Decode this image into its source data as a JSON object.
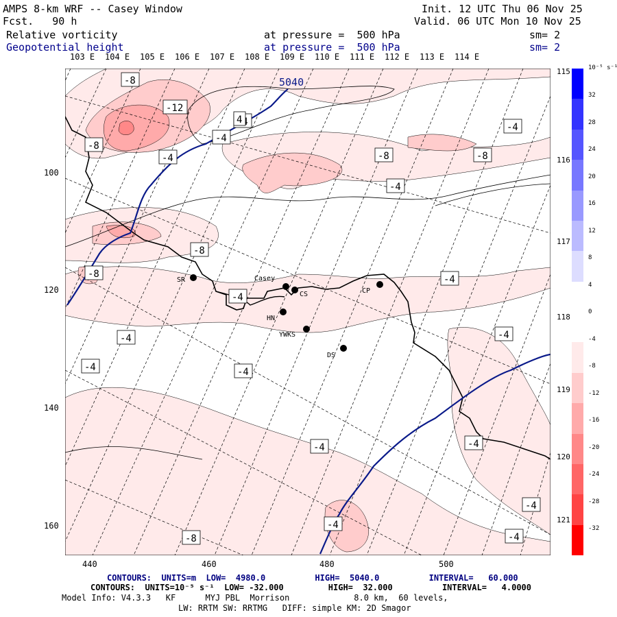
{
  "header": {
    "title": "AMPS 8-km WRF -- Casey Window",
    "fcst": "Fcst.   90 h",
    "init": "Init. 12 UTC Thu 06 Nov 25",
    "valid": "Valid. 06 UTC Mon 10 Nov 25",
    "field1": "Relative vorticity",
    "field1_level": "at pressure =  500 hPa",
    "field1_sm": "sm= 2",
    "field2": "Geopotential height",
    "field2_level": "at pressure =  500 hPa",
    "field2_sm": "sm= 2"
  },
  "lon_labels": [
    "103 E",
    "104 E",
    "105 E",
    "106 E",
    "107 E",
    "108 E",
    "109 E",
    "110 E",
    "111 E",
    "112 E",
    "113 E",
    "114 E"
  ],
  "right_lat_labels": [
    "115 E",
    "116 E",
    "117 E",
    "118 E",
    "119 E",
    "120 E",
    "121 E"
  ],
  "x_ticks": [
    "440",
    "460",
    "480",
    "500"
  ],
  "y_ticks": [
    "100",
    "120",
    "140",
    "160"
  ],
  "stations": [
    {
      "name": "SR"
    },
    {
      "name": "Casey"
    },
    {
      "name": "CS"
    },
    {
      "name": "CP"
    },
    {
      "name": "HN"
    },
    {
      "name": "YWKS"
    },
    {
      "name": "DS"
    }
  ],
  "contour_labels": [
    "-8",
    "-12",
    "-8",
    "-4",
    "-4",
    "-4",
    "-8",
    "-4",
    "-8",
    "4",
    "-4",
    "-8",
    "-8",
    "-4",
    "-4",
    "-4",
    "-4",
    "-4",
    "-4",
    "-4",
    "-4",
    "-4",
    "-8",
    "-4",
    "-4"
  ],
  "height_label": "5040",
  "colorbar": {
    "units": "10⁻⁵ s⁻¹",
    "ticks": [
      "32",
      "28",
      "24",
      "20",
      "16",
      "12",
      "8",
      "4",
      "0",
      "-4",
      "-8",
      "-12",
      "-16",
      "-20",
      "-24",
      "-28",
      "-32"
    ],
    "colors": [
      "#0000ff",
      "#3333ff",
      "#5555ff",
      "#7777ff",
      "#9999ff",
      "#bbbbff",
      "#ddddff",
      "#ffffff",
      "#ffffff",
      "#ffeaea",
      "#ffcccc",
      "#ffaaaa",
      "#ff8888",
      "#ff6666",
      "#ff4444",
      "#ff0000"
    ]
  },
  "footer": {
    "line1": "CONTOURS:  UNITS=m  LOW=  4980.0          HIGH=  5040.0          INTERVAL=   60.000",
    "line2": "CONTOURS:  UNITS=10⁻⁵ s⁻¹  LOW= -32.000         HIGH=  32.000          INTERVAL=   4.0000",
    "line3": "Model Info: V4.3.3   KF      MYJ PBL  Morrison             8.0 km,  60 levels,",
    "line4": "LW: RRTM SW: RRTMG   DIFF: simple KM: 2D Smagor"
  }
}
